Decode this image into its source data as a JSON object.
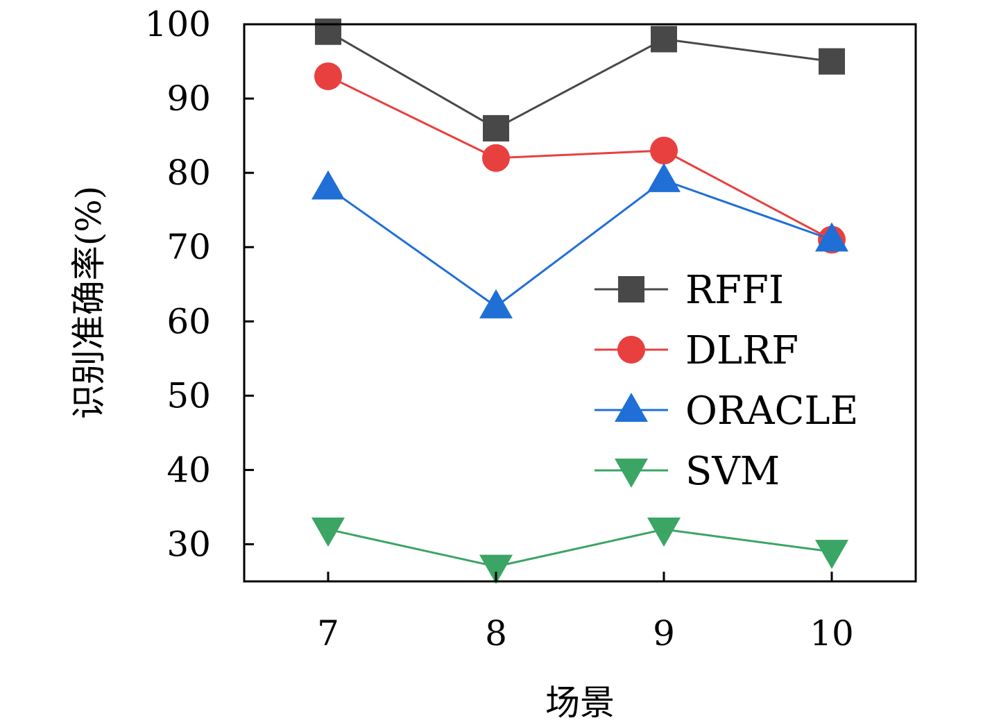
{
  "chart_data": {
    "type": "line",
    "x": [
      7,
      8,
      9,
      10
    ],
    "xticks": [
      "7",
      "8",
      "9",
      "10"
    ],
    "yticks": [
      "30",
      "40",
      "50",
      "60",
      "70",
      "80",
      "90",
      "100"
    ],
    "xlabel": "场景",
    "ylabel": "识别准确率(%)",
    "xlim": [
      6.5,
      10.5
    ],
    "ylim": [
      25,
      100
    ],
    "grid": false,
    "legend_position": "center-right",
    "series": [
      {
        "name": "RFFI",
        "values": [
          99,
          86,
          98,
          95
        ],
        "color": "#484848",
        "marker": "square"
      },
      {
        "name": "DLRF",
        "values": [
          93,
          82,
          83,
          71
        ],
        "color": "#e8403f",
        "marker": "circle"
      },
      {
        "name": "ORACLE",
        "values": [
          78,
          62,
          79,
          71
        ],
        "color": "#1f6fd6",
        "marker": "triangle-up"
      },
      {
        "name": "SVM",
        "values": [
          32,
          27,
          32,
          29
        ],
        "color": "#3aa564",
        "marker": "triangle-down"
      }
    ]
  }
}
